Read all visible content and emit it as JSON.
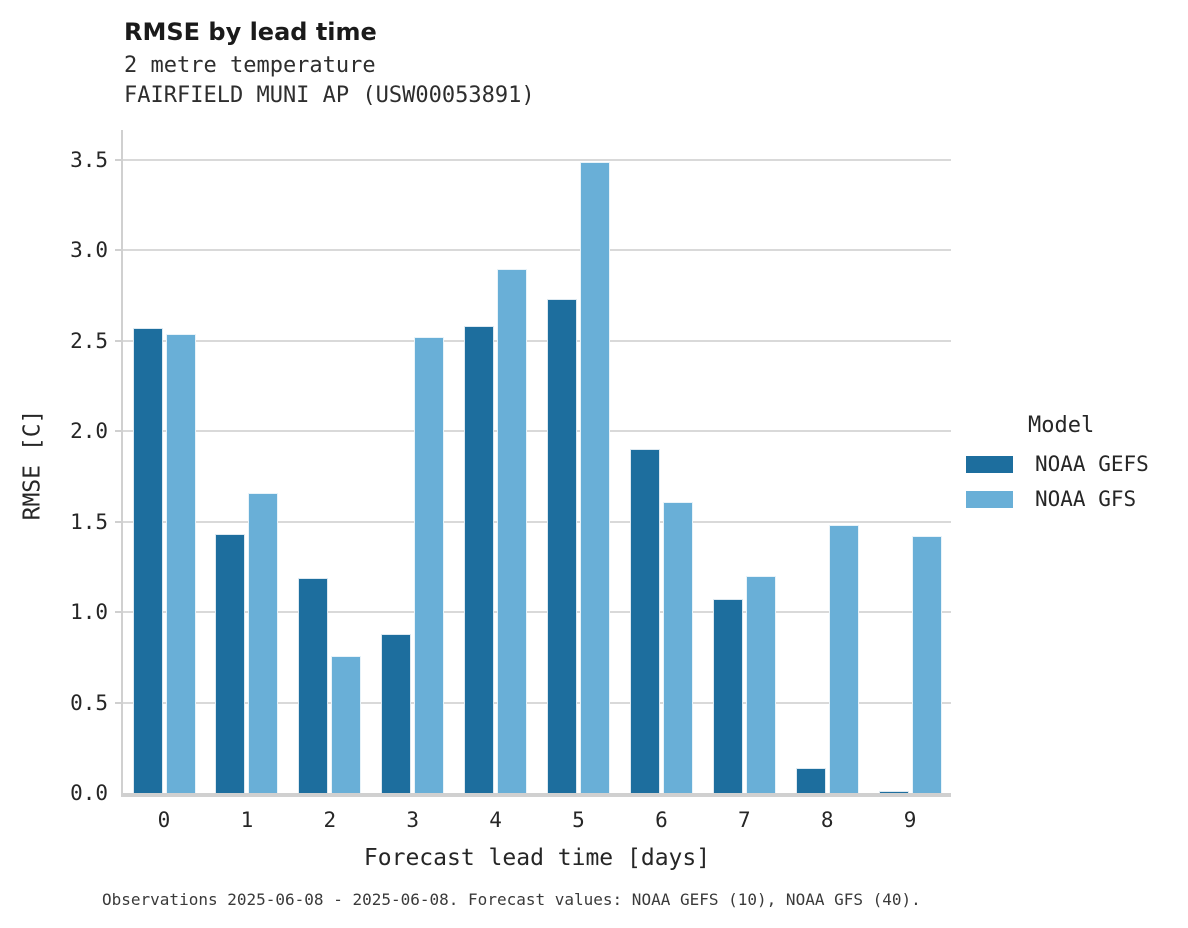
{
  "header": {
    "title": "RMSE by lead time",
    "subtitle1": "2 metre temperature",
    "subtitle2": "FAIRFIELD MUNI AP (USW00053891)"
  },
  "chart_data": {
    "type": "bar",
    "title": "RMSE by lead time",
    "subtitle": [
      "2 metre temperature",
      "FAIRFIELD MUNI AP (USW00053891)"
    ],
    "categories": [
      "0",
      "1",
      "2",
      "3",
      "4",
      "5",
      "6",
      "7",
      "8",
      "9"
    ],
    "series": [
      {
        "name": "NOAA GEFS",
        "color": "#1d6e9e",
        "values": [
          2.57,
          1.43,
          1.19,
          0.88,
          2.58,
          2.73,
          1.9,
          1.07,
          0.14,
          0.01
        ]
      },
      {
        "name": "NOAA GFS",
        "color": "#69afd7",
        "values": [
          2.54,
          1.66,
          0.76,
          2.52,
          2.9,
          3.49,
          1.61,
          1.2,
          1.48,
          1.42
        ]
      }
    ],
    "xlabel": "Forecast lead time [days]",
    "ylabel": "RMSE [C]",
    "ylim": [
      0,
      3.66
    ],
    "yticks": [
      0.0,
      0.5,
      1.0,
      1.5,
      2.0,
      2.5,
      3.0,
      3.5
    ],
    "grid": true,
    "legend_title": "Model",
    "legend_position": "right"
  },
  "legend": {
    "title": "Model",
    "entries": [
      {
        "label": "NOAA GEFS",
        "color": "#1d6e9e"
      },
      {
        "label": "NOAA GFS",
        "color": "#69afd7"
      }
    ]
  },
  "caption": "Observations 2025-06-08 - 2025-06-08. Forecast values: NOAA GEFS (10), NOAA GFS (40).",
  "colors": {
    "gefs": "#1d6e9e",
    "gfs": "#69afd7",
    "gridline": "#d9d9d9",
    "spine": "#d0d0d0",
    "background": "#ffffff"
  }
}
